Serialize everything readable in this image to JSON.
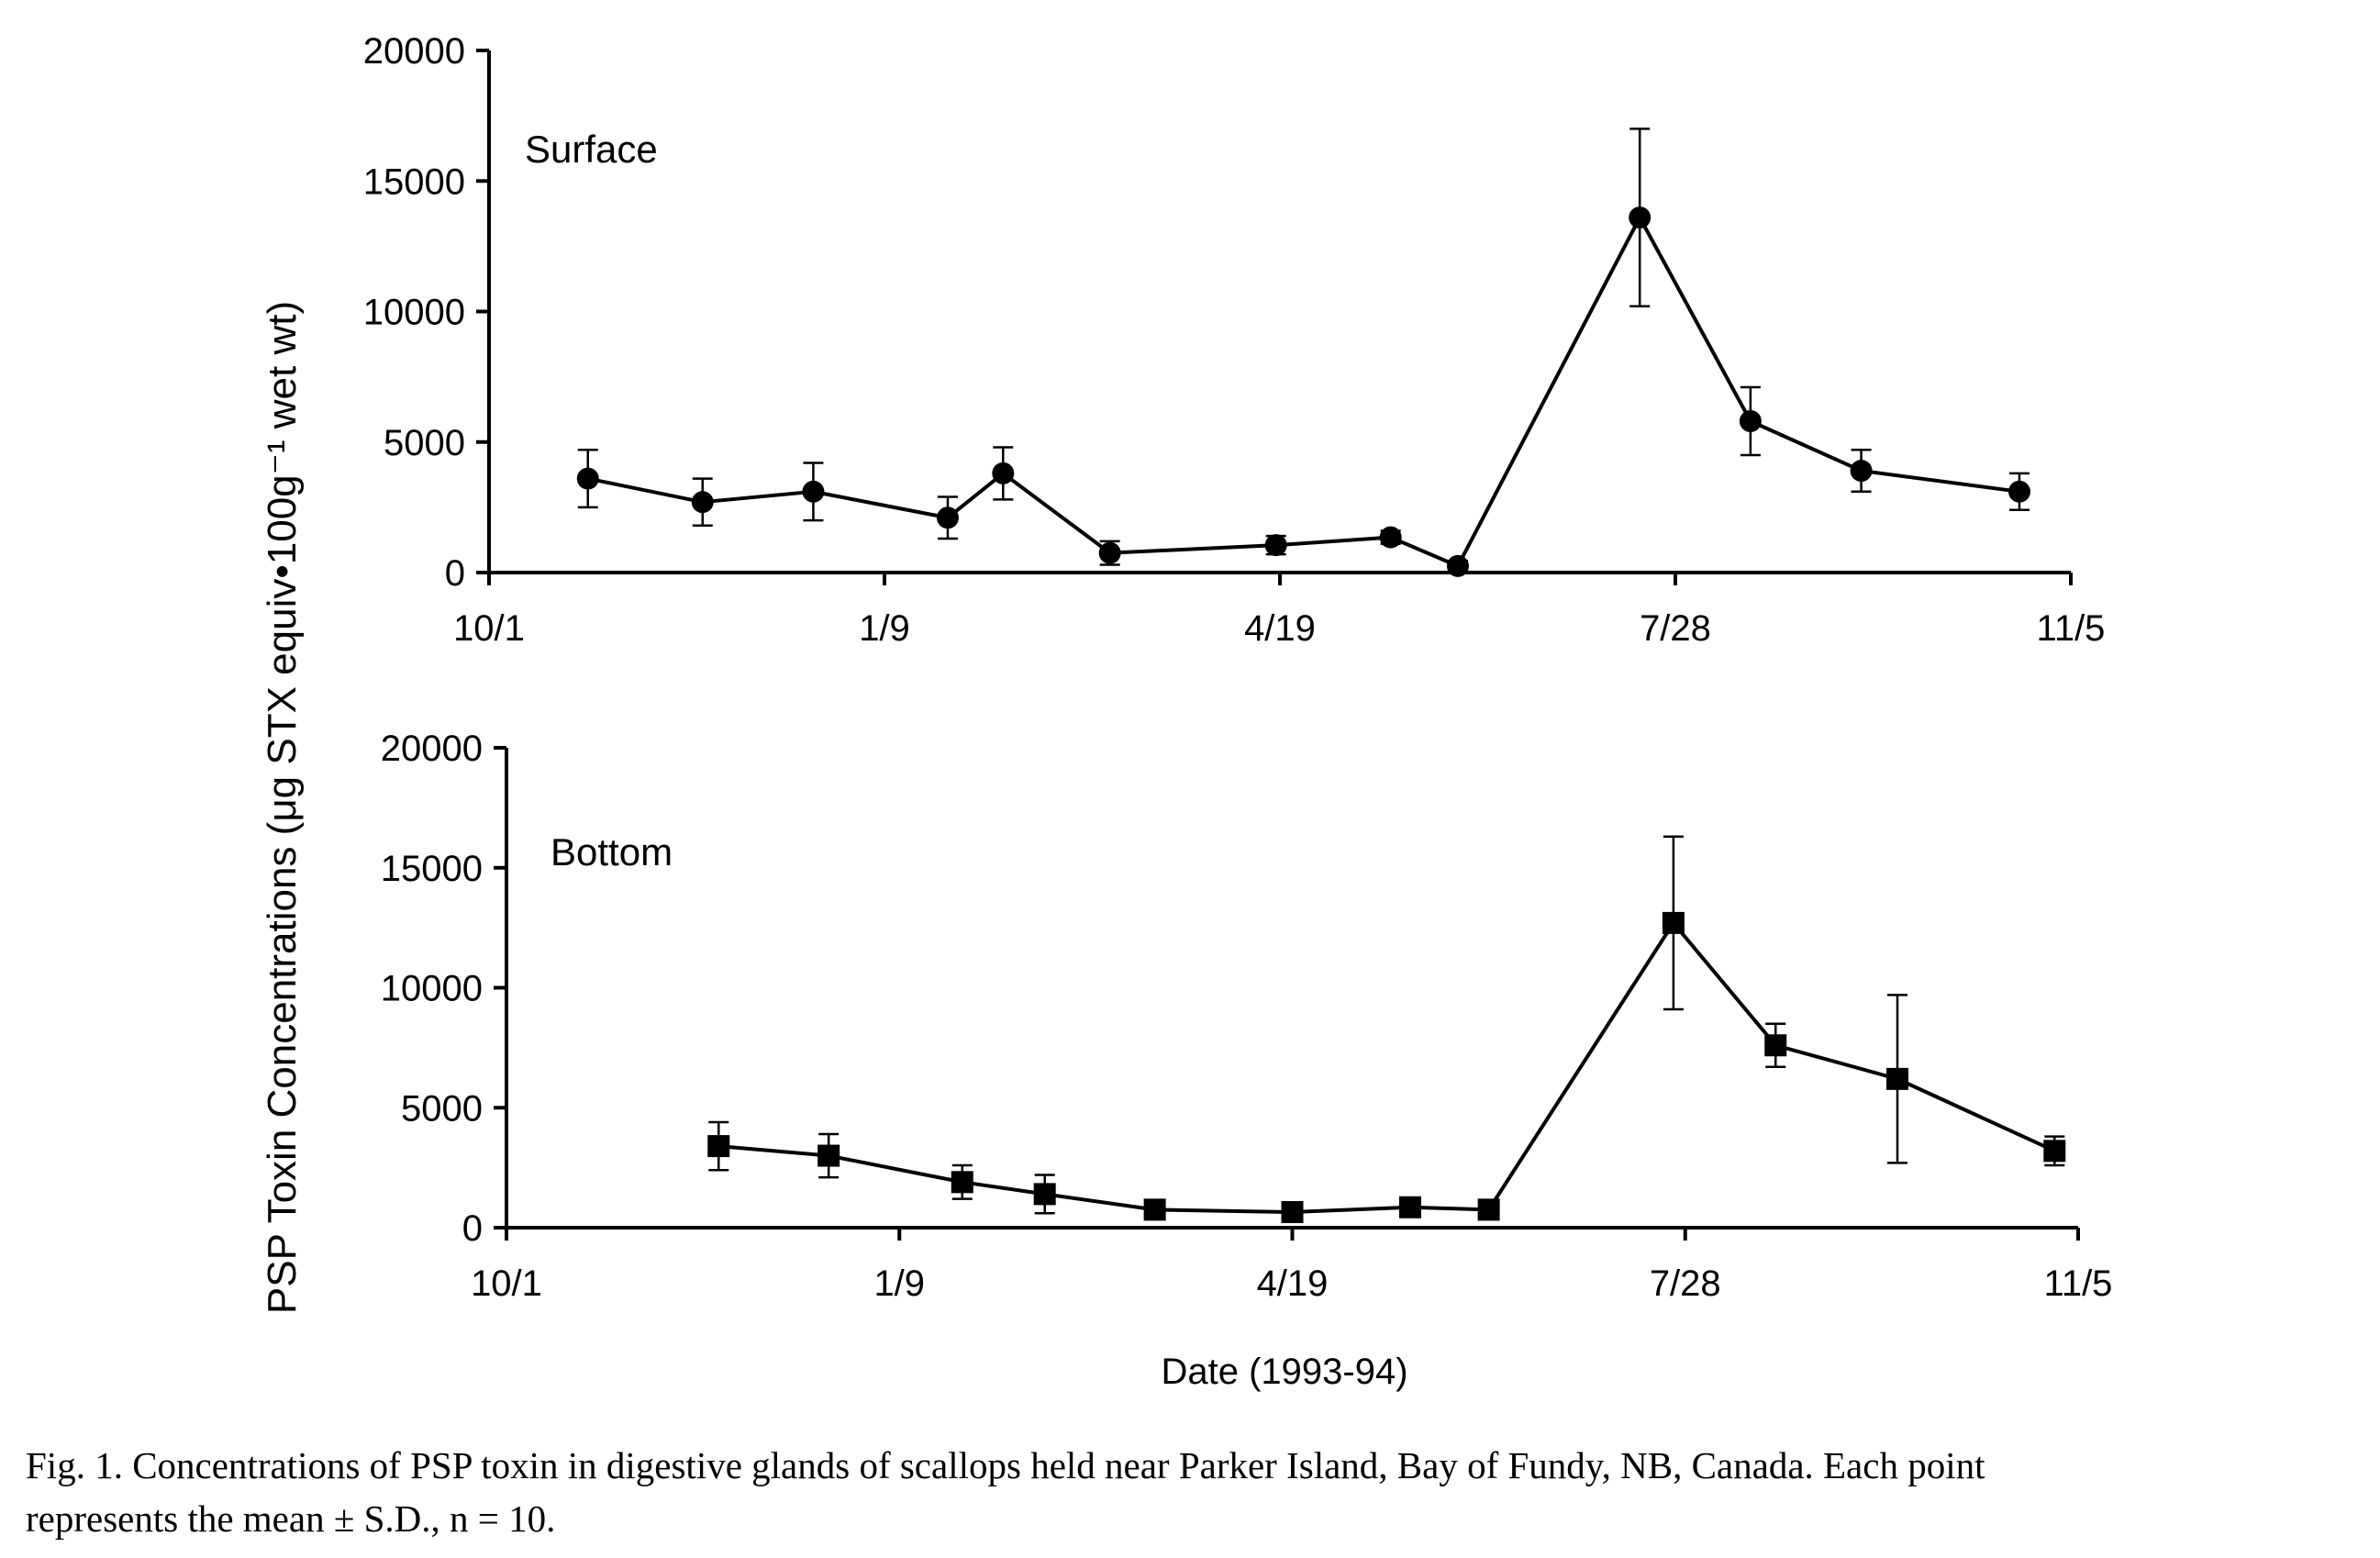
{
  "chart_data": [
    {
      "type": "line",
      "panel_label": "Surface",
      "marker": "circle",
      "ylim": [
        0,
        20000
      ],
      "yticks": [
        0,
        5000,
        10000,
        15000,
        20000
      ],
      "xticks": [
        "10/1",
        "1/9",
        "4/19",
        "7/28",
        "11/5"
      ],
      "xlim": [
        "1993-10-01",
        "1994-11-05"
      ],
      "series": [
        {
          "x": [
            "1993-10-26",
            "1993-11-24",
            "1993-12-22",
            "1994-01-25",
            "1994-02-08",
            "1994-03-07",
            "1994-04-18",
            "1994-05-17",
            "1994-06-03",
            "1994-07-19",
            "1994-08-16",
            "1994-09-13",
            "1994-10-23"
          ],
          "y": [
            3600,
            2700,
            3100,
            2100,
            3800,
            750,
            1050,
            1350,
            250,
            13600,
            5800,
            3900,
            3100
          ],
          "err": [
            1100,
            900,
            1100,
            800,
            1000,
            450,
            350,
            250,
            200,
            3400,
            1300,
            800,
            700
          ]
        }
      ]
    },
    {
      "type": "line",
      "panel_label": "Bottom",
      "marker": "square",
      "ylim": [
        0,
        20000
      ],
      "yticks": [
        0,
        5000,
        10000,
        15000,
        20000
      ],
      "xticks": [
        "10/1",
        "1/9",
        "4/19",
        "7/28",
        "11/5"
      ],
      "xlim": [
        "1993-10-01",
        "1994-11-05"
      ],
      "series": [
        {
          "x": [
            "1993-11-24",
            "1993-12-22",
            "1994-01-25",
            "1994-02-15",
            "1994-03-15",
            "1994-04-19",
            "1994-05-19",
            "1994-06-08",
            "1994-07-25",
            "1994-08-20",
            "1994-09-20",
            "1994-10-30"
          ],
          "y": [
            3400,
            3000,
            1900,
            1400,
            750,
            650,
            850,
            750,
            12700,
            7600,
            6200,
            3200
          ],
          "err": [
            1000,
            900,
            700,
            800,
            350,
            300,
            350,
            300,
            3600,
            900,
            3500,
            600
          ]
        }
      ]
    }
  ],
  "y_axis_label": "PSP Toxin Concentrations (μg STX equiv•100g⁻¹ wet wt)",
  "x_axis_label": "Date (1993-94)",
  "caption": {
    "line1": "Fig. 1. Concentrations of PSP toxin in digestive glands of scallops held near Parker Island, Bay of Fundy, NB, Canada. Each point",
    "line2": "represents the mean ± S.D., n = 10."
  }
}
